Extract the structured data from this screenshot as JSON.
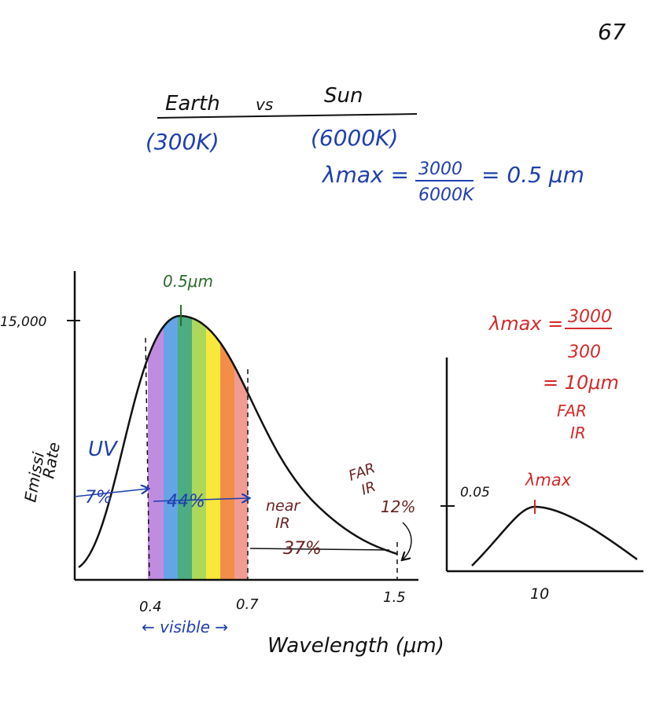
{
  "page_number": "67",
  "header": {
    "left": "Earth",
    "vs": "vs",
    "right": "Sun",
    "left_temp": "(300K)",
    "right_temp": "(6000K)"
  },
  "sun_formula": {
    "lhs": "λmax =",
    "numerator": "3000",
    "denominator": "6000K",
    "result": "= 0.5 μm"
  },
  "left_plot": {
    "y_label": [
      "Emissi",
      "Rate"
    ],
    "y_tick": "15,000",
    "peak_label": "0.5μm",
    "x_ticks": [
      "0.4",
      "0.7",
      "1.5"
    ],
    "x_label": "Wavelength (μm)",
    "visible": "← visible →",
    "uv": "UV",
    "uv_pct": "7%",
    "visible_pct": "44%",
    "near_ir": [
      "near",
      "IR"
    ],
    "near_ir_pct": "37%",
    "far_ir": [
      "FAR",
      "IR"
    ],
    "far_ir_pct": "12%"
  },
  "right_plot": {
    "formula": {
      "lhs": "λmax =",
      "numerator": "3000",
      "denominator": "300",
      "result": "= 10μm"
    },
    "far_ir": [
      "FAR",
      "IR"
    ],
    "y_tick": "0.05",
    "peak_label": "λmax",
    "x_tick": "10"
  }
}
